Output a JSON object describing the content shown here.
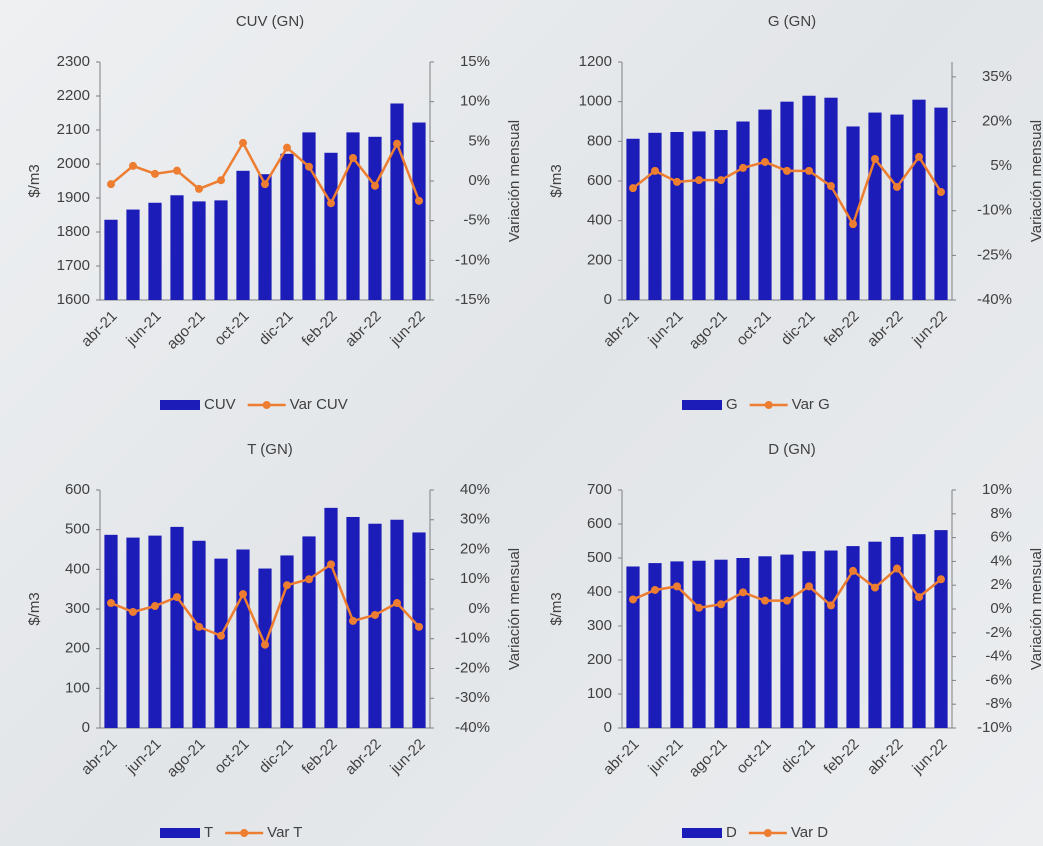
{
  "chart_data": [
    {
      "type": "bar-line",
      "title": "CUV (GN)",
      "ylabel": "$/m3",
      "y2label": "Variación mensual",
      "categories": [
        "abr-21",
        null,
        "jun-21",
        null,
        "ago-21",
        null,
        "oct-21",
        null,
        "dic-21",
        null,
        "feb-22",
        null,
        "abr-22",
        null,
        "jun-22"
      ],
      "series": [
        {
          "name": "CUV",
          "color": "#1c1cb8",
          "values": [
            1836,
            1866,
            1886,
            1908,
            1890,
            1893,
            1980,
            1970,
            2030,
            2093,
            2033,
            2093,
            2080,
            2178,
            2122
          ]
        },
        {
          "name": "Var CUV",
          "color": "#ed7d31",
          "axis": "y2",
          "values": [
            -0.4,
            1.9,
            0.9,
            1.3,
            -1.0,
            0.1,
            4.8,
            -0.4,
            4.2,
            1.8,
            -2.8,
            2.9,
            -0.6,
            4.7,
            -2.5
          ]
        }
      ],
      "ylim": [
        1600,
        2300
      ],
      "yticks": [
        1600,
        1700,
        1800,
        1900,
        2000,
        2100,
        2200,
        2300
      ],
      "y2lim": [
        -15,
        15
      ],
      "y2ticks": [
        {
          "value": -15,
          "label": "-15%"
        },
        {
          "value": -10,
          "label": "-10%"
        },
        {
          "value": -5,
          "label": "-5%"
        },
        {
          "value": 0,
          "label": "0%"
        },
        {
          "value": 5,
          "label": "5%"
        },
        {
          "value": 10,
          "label": "10%"
        },
        {
          "value": 15,
          "label": "15%"
        }
      ]
    },
    {
      "type": "bar-line",
      "title": "G (GN)",
      "ylabel": "$/m3",
      "y2label": "Variación mensual",
      "categories": [
        "abr-21",
        null,
        "jun-21",
        null,
        "ago-21",
        null,
        "oct-21",
        null,
        "dic-21",
        null,
        "feb-22",
        null,
        "abr-22",
        null,
        "jun-22"
      ],
      "series": [
        {
          "name": "G",
          "color": "#1c1cb8",
          "values": [
            813,
            843,
            847,
            850,
            857,
            900,
            960,
            1000,
            1030,
            1020,
            875,
            945,
            935,
            1010,
            970
          ]
        },
        {
          "name": "Var G",
          "color": "#ed7d31",
          "axis": "y2",
          "values": [
            -2.4,
            3.4,
            -0.3,
            0.3,
            0.3,
            4.4,
            6.4,
            3.4,
            3.4,
            -1.7,
            -14.5,
            7.4,
            -2.0,
            8.1,
            -3.7
          ]
        }
      ],
      "ylim": [
        0,
        1200
      ],
      "yticks": [
        0,
        200,
        400,
        600,
        800,
        1000,
        1200
      ],
      "y2lim": [
        -40,
        40
      ],
      "y2ticks": [
        {
          "value": -40,
          "label": "-40%"
        },
        {
          "value": -25,
          "label": "-25%"
        },
        {
          "value": -10,
          "label": "-10%"
        },
        {
          "value": 5,
          "label": "5%"
        },
        {
          "value": 20,
          "label": "20%"
        },
        {
          "value": 35,
          "label": "35%"
        }
      ]
    },
    {
      "type": "bar-line",
      "title": "T (GN)",
      "ylabel": "$/m3",
      "y2label": "Variación mensual",
      "categories": [
        "abr-21",
        null,
        "jun-21",
        null,
        "ago-21",
        null,
        "oct-21",
        null,
        "dic-21",
        null,
        "feb-22",
        null,
        "abr-22",
        null,
        "jun-22"
      ],
      "series": [
        {
          "name": "T",
          "color": "#1c1cb8",
          "values": [
            487,
            480,
            485,
            507,
            472,
            427,
            450,
            402,
            435,
            483,
            555,
            532,
            515,
            525,
            493
          ]
        },
        {
          "name": "Var T",
          "color": "#ed7d31",
          "axis": "y2",
          "values": [
            2,
            -1,
            1,
            4,
            -6,
            -9,
            5,
            -12,
            8,
            10,
            15,
            -4,
            -2,
            2,
            -6
          ]
        }
      ],
      "ylim": [
        0,
        600
      ],
      "yticks": [
        0,
        100,
        200,
        300,
        400,
        500,
        600
      ],
      "y2lim": [
        -40,
        40
      ],
      "y2ticks": [
        {
          "value": -40,
          "label": "-40%"
        },
        {
          "value": -30,
          "label": "-30%"
        },
        {
          "value": -20,
          "label": "-20%"
        },
        {
          "value": -10,
          "label": "-10%"
        },
        {
          "value": 0,
          "label": "0%"
        },
        {
          "value": 10,
          "label": "10%"
        },
        {
          "value": 20,
          "label": "20%"
        },
        {
          "value": 30,
          "label": "30%"
        },
        {
          "value": 40,
          "label": "40%"
        }
      ]
    },
    {
      "type": "bar-line",
      "title": "D (GN)",
      "ylabel": "$/m3",
      "y2label": "Variación mensual",
      "categories": [
        "abr-21",
        null,
        "jun-21",
        null,
        "ago-21",
        null,
        "oct-21",
        null,
        "dic-21",
        null,
        "feb-22",
        null,
        "abr-22",
        null,
        "jun-22"
      ],
      "series": [
        {
          "name": "D",
          "color": "#1c1cb8",
          "values": [
            475,
            485,
            490,
            492,
            495,
            500,
            505,
            510,
            520,
            522,
            535,
            548,
            562,
            570,
            582
          ]
        },
        {
          "name": "Var D",
          "color": "#ed7d31",
          "axis": "y2",
          "values": [
            0.8,
            1.6,
            1.9,
            0.1,
            0.4,
            1.4,
            0.7,
            0.7,
            1.9,
            0.3,
            3.2,
            1.8,
            3.4,
            1.0,
            2.5
          ]
        }
      ],
      "ylim": [
        0,
        700
      ],
      "yticks": [
        0,
        100,
        200,
        300,
        400,
        500,
        600,
        700
      ],
      "y2lim": [
        -10,
        10
      ],
      "y2ticks": [
        {
          "value": -10,
          "label": "-10%"
        },
        {
          "value": -8,
          "label": "-8%"
        },
        {
          "value": -6,
          "label": "-6%"
        },
        {
          "value": -4,
          "label": "-4%"
        },
        {
          "value": -2,
          "label": "-2%"
        },
        {
          "value": 0,
          "label": "0%"
        },
        {
          "value": 2,
          "label": "2%"
        },
        {
          "value": 4,
          "label": "4%"
        },
        {
          "value": 6,
          "label": "6%"
        },
        {
          "value": 8,
          "label": "8%"
        },
        {
          "value": 10,
          "label": "10%"
        }
      ]
    }
  ]
}
